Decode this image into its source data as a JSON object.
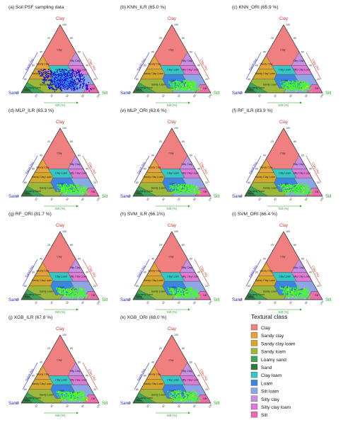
{
  "figure": {
    "corners": {
      "top": "Clay",
      "left": "Sand",
      "right": "Silt"
    },
    "axis_titles": {
      "sand": "Sand (%)",
      "clay": "Clay (%)",
      "silt": "Silt (%)"
    },
    "ticks": [
      "20",
      "40",
      "60",
      "80",
      "100"
    ],
    "colors": {
      "sand_axis": "#2b2bd6",
      "clay_axis": "#c0392b",
      "silt_axis": "#2e9e2e",
      "points_obs": "#1010e0",
      "points_pred": "#44ff22"
    }
  },
  "textural_classes": [
    {
      "name": "Clay",
      "short": "Clay",
      "color": "#f08080"
    },
    {
      "name": "Sandy clay",
      "short": "Sandy Clay",
      "color": "#e8a23a"
    },
    {
      "name": "Sandy clay loam",
      "short": "Sandy Clay Loam",
      "color": "#d4a72c"
    },
    {
      "name": "Sandy loam",
      "short": "Sandy Loam",
      "color": "#9cb83a"
    },
    {
      "name": "Loamy sand",
      "short": "Loamy Sand",
      "color": "#3aa757"
    },
    {
      "name": "Sand",
      "short": "Sand",
      "color": "#2f7a3d"
    },
    {
      "name": "Clay loam",
      "short": "Clay Loam",
      "color": "#35c7c7"
    },
    {
      "name": "Loam",
      "short": "Loam",
      "color": "#3a86e0"
    },
    {
      "name": "Silt loam",
      "short": "Silt Loam",
      "color": "#8da6e8"
    },
    {
      "name": "Silty clay",
      "short": "Silty Clay",
      "color": "#c78fe6"
    },
    {
      "name": "Silty clay loam",
      "short": "Silty Clay Loam",
      "color": "#e07ad6"
    },
    {
      "name": "Silt",
      "short": "Silt",
      "color": "#f06ab0"
    }
  ],
  "legend": {
    "title": "Textural class"
  },
  "chart_data": [
    {
      "type": "scatter",
      "title": "(a) Soil PSF sampling data",
      "series": []
    },
    {
      "type": "scatter",
      "title": "(b) KNN_ILR (65.0 %)",
      "series": []
    },
    {
      "type": "scatter",
      "title": "(c) KNN_ORI (65.9 %)",
      "series": []
    },
    {
      "type": "scatter",
      "title": "(d) MLP_ILR (63.3 %)",
      "series": []
    },
    {
      "type": "scatter",
      "title": "(e) MLP_ORI (63.6 %)",
      "series": []
    },
    {
      "type": "scatter",
      "title": "(f) RF_ILR (83.9 %)",
      "series": []
    },
    {
      "type": "scatter",
      "title": "(g) RF_ORI (81.7 %)",
      "series": []
    },
    {
      "type": "scatter",
      "title": "(h) SVM_ILR (66.1%)",
      "series": []
    },
    {
      "type": "scatter",
      "title": "(i) SVM_ORI (66.4 %)",
      "series": []
    },
    {
      "type": "scatter",
      "title": "(j) XGB_ILR (67.8 %)",
      "series": []
    },
    {
      "type": "scatter",
      "title": "(k) XGB_ORI (68.0 %)",
      "series": []
    }
  ]
}
